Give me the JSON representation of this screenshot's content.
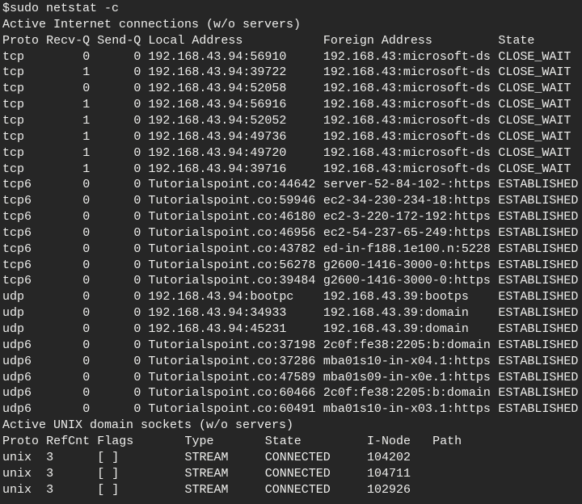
{
  "command": "$sudo netstat -c",
  "inet": {
    "heading": "Active Internet connections (w/o servers)",
    "columns": [
      "Proto",
      "Recv-Q",
      "Send-Q",
      "Local Address",
      "Foreign Address",
      "State"
    ],
    "rows": [
      [
        "tcp",
        0,
        0,
        "192.168.43.94:56910",
        "192.168.43:microsoft-ds",
        "CLOSE_WAIT"
      ],
      [
        "tcp",
        1,
        0,
        "192.168.43.94:39722",
        "192.168.43:microsoft-ds",
        "CLOSE_WAIT"
      ],
      [
        "tcp",
        0,
        0,
        "192.168.43.94:52058",
        "192.168.43:microsoft-ds",
        "CLOSE_WAIT"
      ],
      [
        "tcp",
        1,
        0,
        "192.168.43.94:56916",
        "192.168.43:microsoft-ds",
        "CLOSE_WAIT"
      ],
      [
        "tcp",
        1,
        0,
        "192.168.43.94:52052",
        "192.168.43:microsoft-ds",
        "CLOSE_WAIT"
      ],
      [
        "tcp",
        1,
        0,
        "192.168.43.94:49736",
        "192.168.43:microsoft-ds",
        "CLOSE_WAIT"
      ],
      [
        "tcp",
        1,
        0,
        "192.168.43.94:49720",
        "192.168.43:microsoft-ds",
        "CLOSE_WAIT"
      ],
      [
        "tcp",
        1,
        0,
        "192.168.43.94:39716",
        "192.168.43:microsoft-ds",
        "CLOSE_WAIT"
      ],
      [
        "tcp6",
        0,
        0,
        "Tutorialspoint.co:44642",
        "server-52-84-102-:https",
        "ESTABLISHED"
      ],
      [
        "tcp6",
        0,
        0,
        "Tutorialspoint.co:59946",
        "ec2-34-230-234-18:https",
        "ESTABLISHED"
      ],
      [
        "tcp6",
        0,
        0,
        "Tutorialspoint.co:46180",
        "ec2-3-220-172-192:https",
        "ESTABLISHED"
      ],
      [
        "tcp6",
        0,
        0,
        "Tutorialspoint.co:46956",
        "ec2-54-237-65-249:https",
        "ESTABLISHED"
      ],
      [
        "tcp6",
        0,
        0,
        "Tutorialspoint.co:43782",
        "ed-in-f188.1e100.n:5228",
        "ESTABLISHED"
      ],
      [
        "tcp6",
        0,
        0,
        "Tutorialspoint.co:56278",
        "g2600-1416-3000-0:https",
        "ESTABLISHED"
      ],
      [
        "tcp6",
        0,
        0,
        "Tutorialspoint.co:39484",
        "g2600-1416-3000-0:https",
        "ESTABLISHED"
      ],
      [
        "udp",
        0,
        0,
        "192.168.43.94:bootpc",
        "192.168.43.39:bootps",
        "ESTABLISHED"
      ],
      [
        "udp",
        0,
        0,
        "192.168.43.94:34933",
        "192.168.43.39:domain",
        "ESTABLISHED"
      ],
      [
        "udp",
        0,
        0,
        "192.168.43.94:45231",
        "192.168.43.39:domain",
        "ESTABLISHED"
      ],
      [
        "udp6",
        0,
        0,
        "Tutorialspoint.co:37198",
        "2c0f:fe38:2205:b:domain",
        "ESTABLISHED"
      ],
      [
        "udp6",
        0,
        0,
        "Tutorialspoint.co:37286",
        "mba01s10-in-x04.1:https",
        "ESTABLISHED"
      ],
      [
        "udp6",
        0,
        0,
        "Tutorialspoint.co:47589",
        "mba01s09-in-x0e.1:https",
        "ESTABLISHED"
      ],
      [
        "udp6",
        0,
        0,
        "Tutorialspoint.co:60466",
        "2c0f:fe38:2205:b:domain",
        "ESTABLISHED"
      ],
      [
        "udp6",
        0,
        0,
        "Tutorialspoint.co:60491",
        "mba01s10-in-x03.1:https",
        "ESTABLISHED"
      ]
    ]
  },
  "unix": {
    "heading": "Active UNIX domain sockets (w/o servers)",
    "columns": [
      "Proto",
      "RefCnt",
      "Flags",
      "Type",
      "State",
      "I-Node",
      "Path"
    ],
    "rows": [
      [
        "unix",
        3,
        "[ ]",
        "STREAM",
        "CONNECTED",
        104202
      ],
      [
        "unix",
        3,
        "[ ]",
        "STREAM",
        "CONNECTED",
        104711
      ],
      [
        "unix",
        3,
        "[ ]",
        "STREAM",
        "CONNECTED",
        102926
      ]
    ]
  }
}
